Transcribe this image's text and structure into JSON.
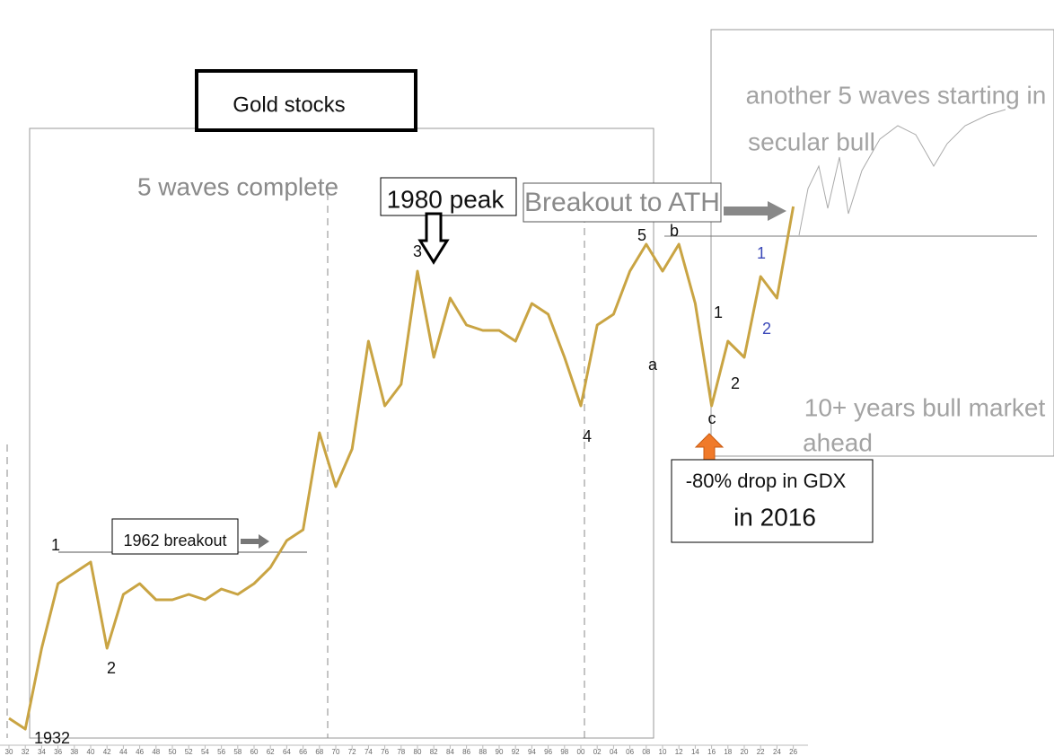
{
  "chart_data": {
    "type": "line",
    "title": "Gold stocks",
    "categories": [
      "30",
      "32",
      "34",
      "36",
      "38",
      "40",
      "42",
      "44",
      "46",
      "48",
      "50",
      "52",
      "54",
      "56",
      "58",
      "60",
      "62",
      "64",
      "66",
      "68",
      "70",
      "72",
      "74",
      "76",
      "78",
      "80",
      "82",
      "84",
      "86",
      "88",
      "90",
      "92",
      "94",
      "96",
      "98",
      "00",
      "02",
      "04",
      "06",
      "08",
      "10",
      "12",
      "14",
      "16",
      "18",
      "20",
      "22",
      "24",
      "26"
    ],
    "values": [
      5,
      3,
      18,
      30,
      32,
      34,
      18,
      28,
      30,
      27,
      27,
      28,
      27,
      29,
      28,
      30,
      33,
      38,
      40,
      58,
      48,
      55,
      75,
      63,
      67,
      88,
      72,
      83,
      78,
      77,
      77,
      75,
      82,
      80,
      72,
      63,
      78,
      80,
      88,
      93,
      88,
      93,
      82,
      63,
      75,
      72,
      87,
      83,
      100
    ],
    "color": "#c9a443",
    "ylim": [
      0,
      105
    ],
    "annotations": {
      "waves_complete": "5 waves complete",
      "peak_1980": "1980 peak",
      "breakout_ath": "Breakout to ATH",
      "another_waves": "another 5 waves starting in",
      "secular_bull": "secular bull",
      "breakout_1962": "1962 breakout",
      "bull_market": "10+ years bull market",
      "ahead": "ahead",
      "gdx_drop": "-80% drop in GDX",
      "in_2016": "in 2016",
      "start_year": "1932",
      "wave_1": "1",
      "wave_2": "2",
      "wave_3": "3",
      "wave_4": "4",
      "wave_5": "5",
      "wave_a": "a",
      "wave_b": "b",
      "wave_c": "c",
      "new_1": "1",
      "new_2": "2",
      "sub_1": "1",
      "sub_2": "2"
    }
  }
}
